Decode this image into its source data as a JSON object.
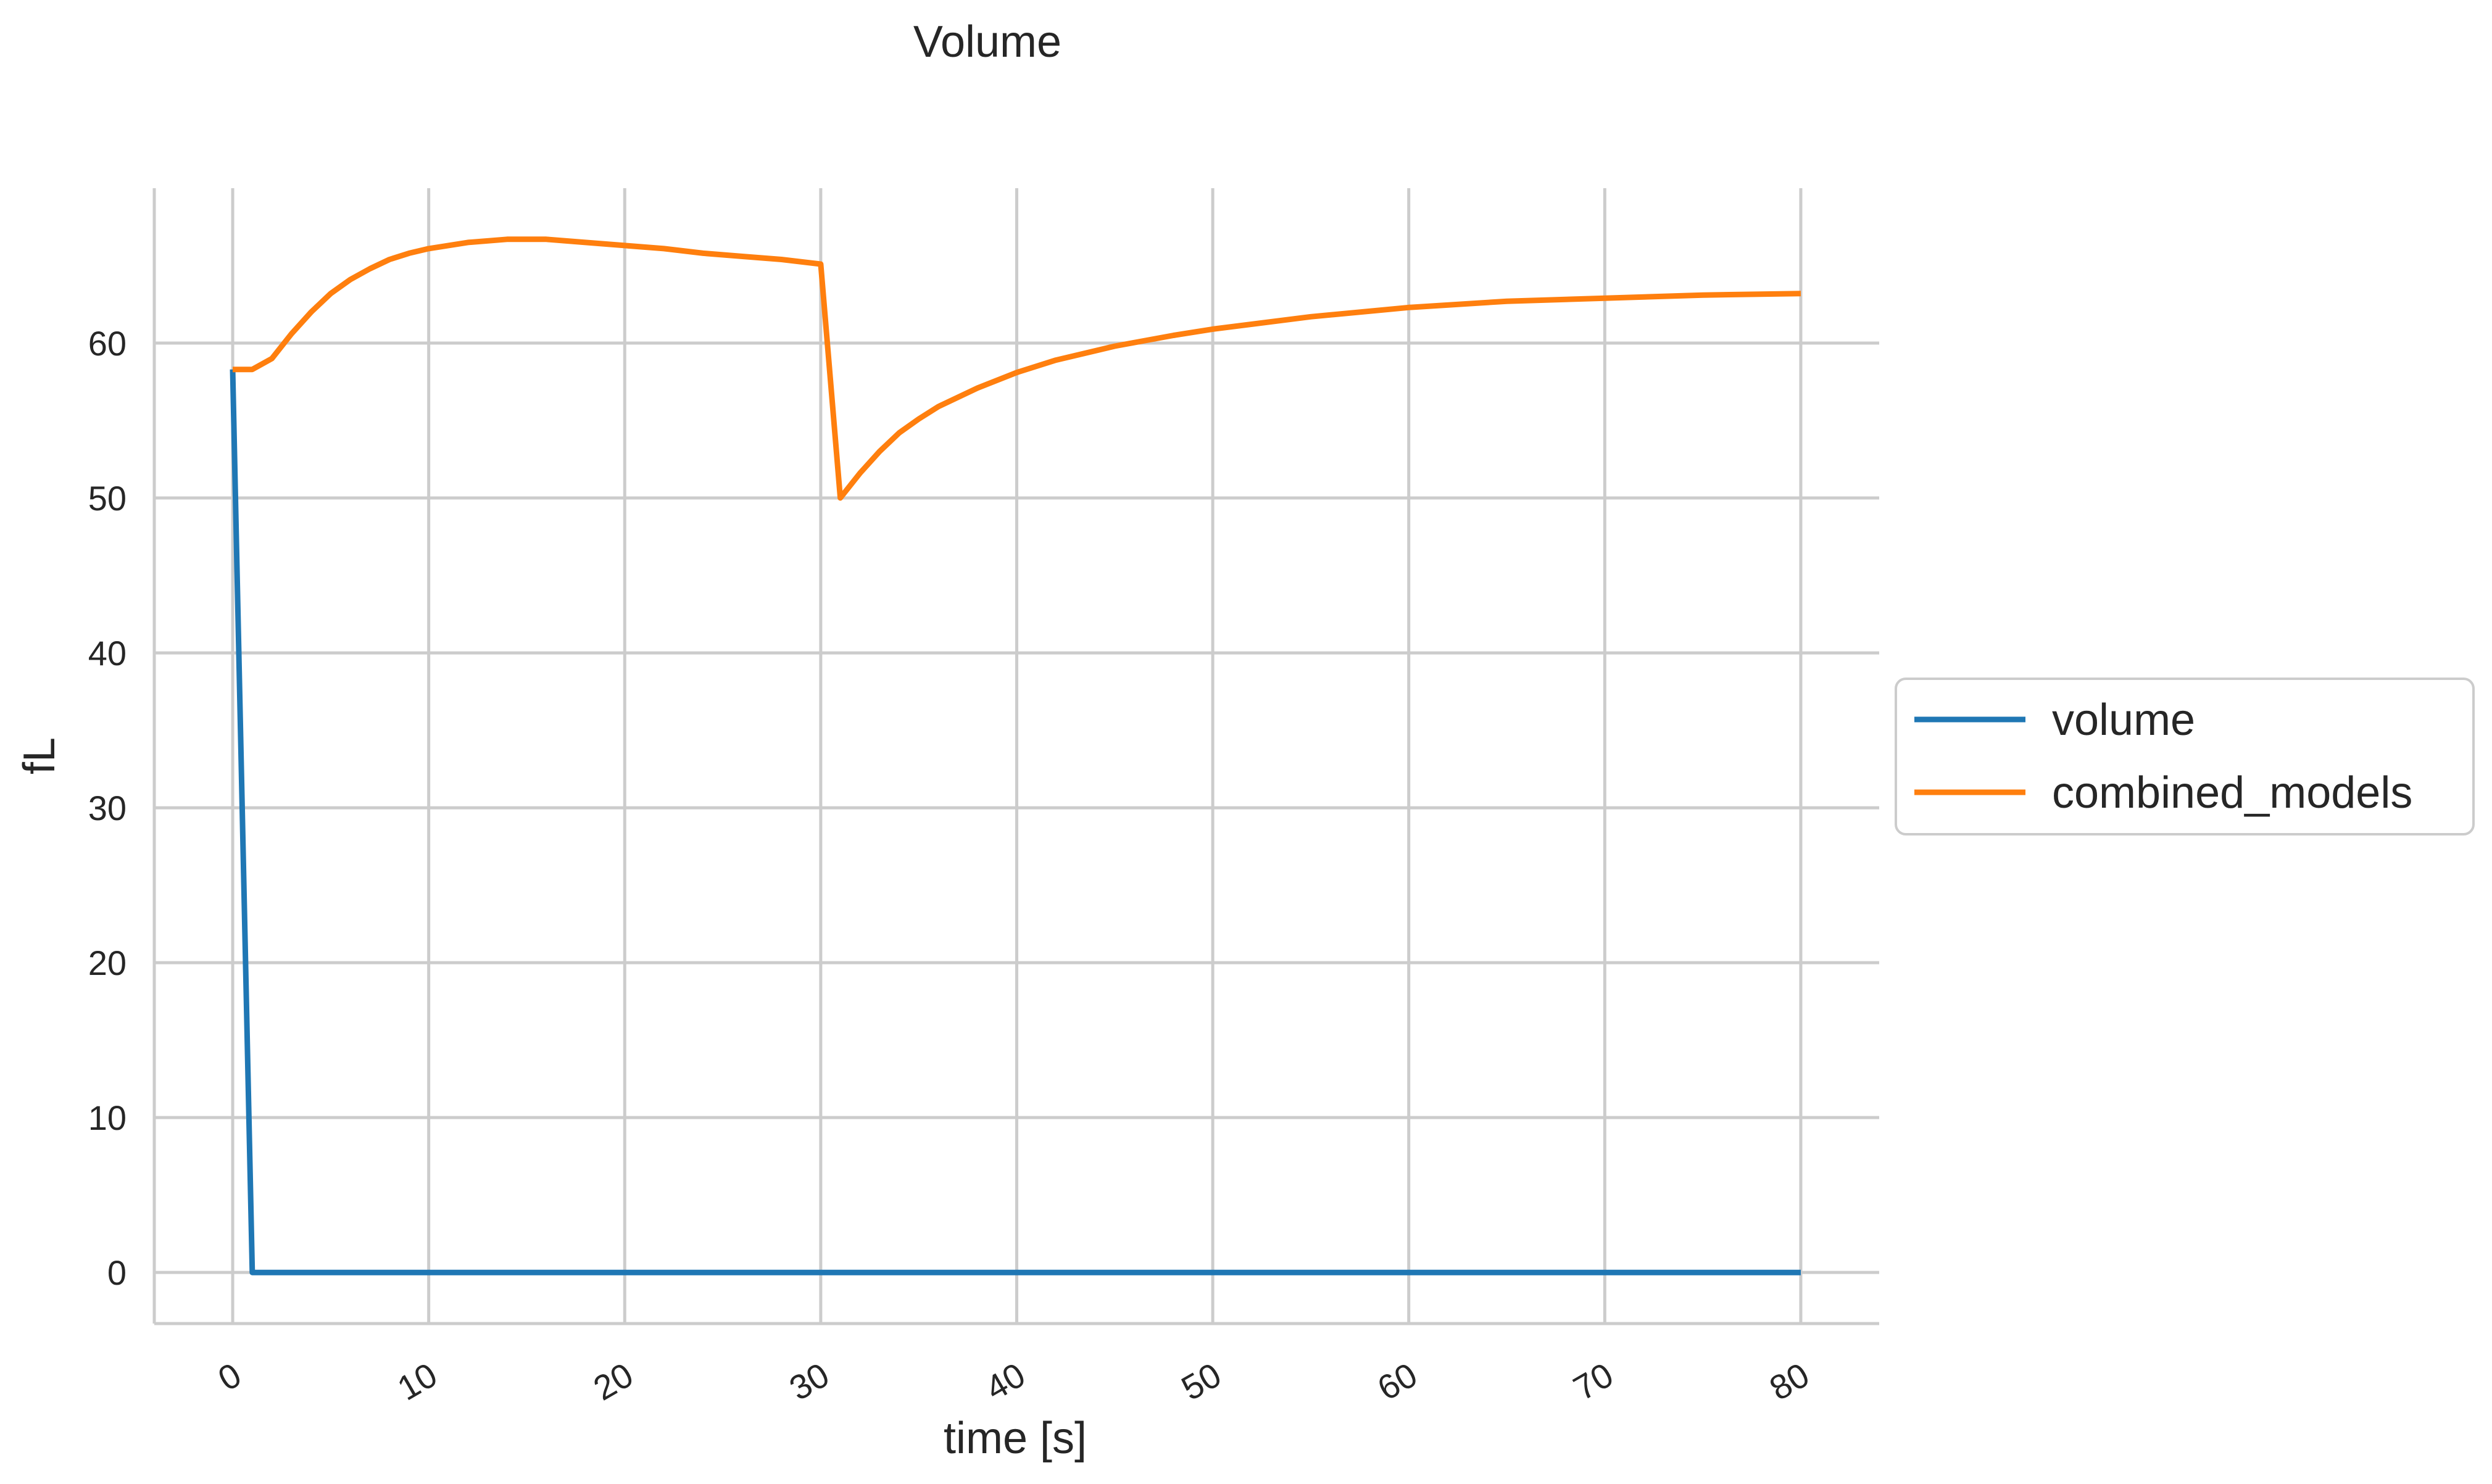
{
  "chart_data": {
    "type": "line",
    "title": "Volume",
    "xlabel": "time [s]",
    "ylabel": "fL",
    "xlim": [
      -4,
      84
    ],
    "ylim": [
      -3.3,
      70
    ],
    "xticks": [
      0,
      10,
      20,
      30,
      40,
      50,
      60,
      70,
      80
    ],
    "yticks": [
      0,
      10,
      20,
      30,
      40,
      50,
      60
    ],
    "grid": true,
    "legend": "center-right",
    "series": [
      {
        "name": "volume",
        "color": "#1f77b4",
        "x": [
          0,
          1,
          80
        ],
        "y": [
          58.3,
          0,
          0
        ]
      },
      {
        "name": "combined_models",
        "color": "#ff7f0e",
        "x": [
          0,
          1,
          2,
          3,
          4,
          5,
          6,
          7,
          8,
          9,
          10,
          12,
          14,
          16,
          18,
          20,
          22,
          24,
          26,
          28,
          30,
          31,
          32,
          33,
          34,
          35,
          36,
          38,
          40,
          42,
          45,
          48,
          50,
          55,
          60,
          65,
          70,
          75,
          80
        ],
        "y": [
          58.3,
          58.3,
          59.0,
          60.6,
          62.0,
          63.2,
          64.1,
          64.8,
          65.4,
          65.8,
          66.1,
          66.5,
          66.7,
          66.7,
          66.5,
          66.3,
          66.1,
          65.8,
          65.6,
          65.4,
          65.1,
          50.0,
          51.6,
          53.0,
          54.2,
          55.1,
          55.9,
          57.1,
          58.1,
          58.9,
          59.8,
          60.5,
          60.9,
          61.7,
          62.3,
          62.7,
          62.9,
          63.1,
          63.2
        ]
      }
    ]
  }
}
